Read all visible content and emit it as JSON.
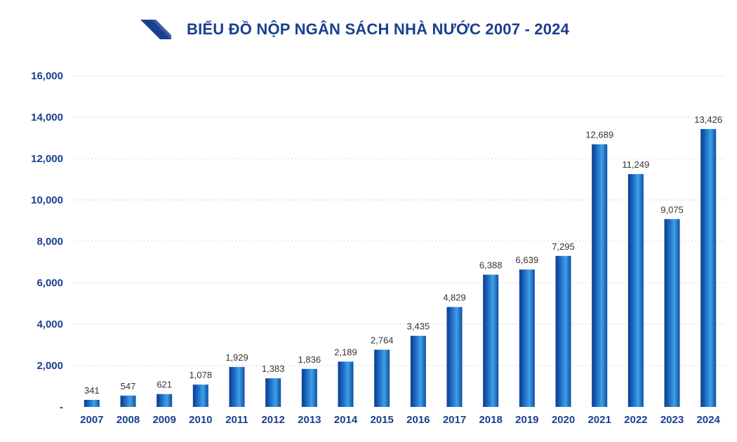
{
  "header": {
    "title": "BIỂU ĐỒ NỘP NGÂN SÁCH NHÀ NƯỚC 2007 - 2024",
    "logo_icon": "diagonal-stripe-logo-icon"
  },
  "colors": {
    "title": "#1b3f8f",
    "bar_light": "#3fa0e6",
    "bar_mid": "#1f6fc8",
    "bar_dark": "#0a3b8c",
    "grid": "#d0d0d0"
  },
  "chart_data": {
    "type": "bar",
    "title": "BIỂU ĐỒ NỘP NGÂN SÁCH NHÀ NƯỚC 2007 - 2024",
    "xlabel": "",
    "ylabel": "",
    "ylim": [
      0,
      16000
    ],
    "yticks": [
      0,
      2000,
      4000,
      6000,
      8000,
      10000,
      12000,
      14000,
      16000
    ],
    "ytick_labels": [
      "-",
      "2,000",
      "4,000",
      "6,000",
      "8,000",
      "10,000",
      "12,000",
      "14,000",
      "16,000"
    ],
    "grid": true,
    "categories": [
      "2007",
      "2008",
      "2009",
      "2010",
      "2011",
      "2012",
      "2013",
      "2014",
      "2015",
      "2016",
      "2017",
      "2018",
      "2019",
      "2020",
      "2021",
      "2022",
      "2023",
      "2024"
    ],
    "values": [
      341,
      547,
      621,
      1078,
      1929,
      1383,
      1836,
      2189,
      2764,
      3435,
      4829,
      6388,
      6639,
      7295,
      12689,
      11249,
      9075,
      13426
    ],
    "value_labels": [
      "341",
      "547",
      "621",
      "1,078",
      "1,929",
      "1,383",
      "1,836",
      "2,189",
      "2,764",
      "3,435",
      "4,829",
      "6,388",
      "6,639",
      "7,295",
      "12,689",
      "11,249",
      "9,075",
      "13,426"
    ]
  }
}
